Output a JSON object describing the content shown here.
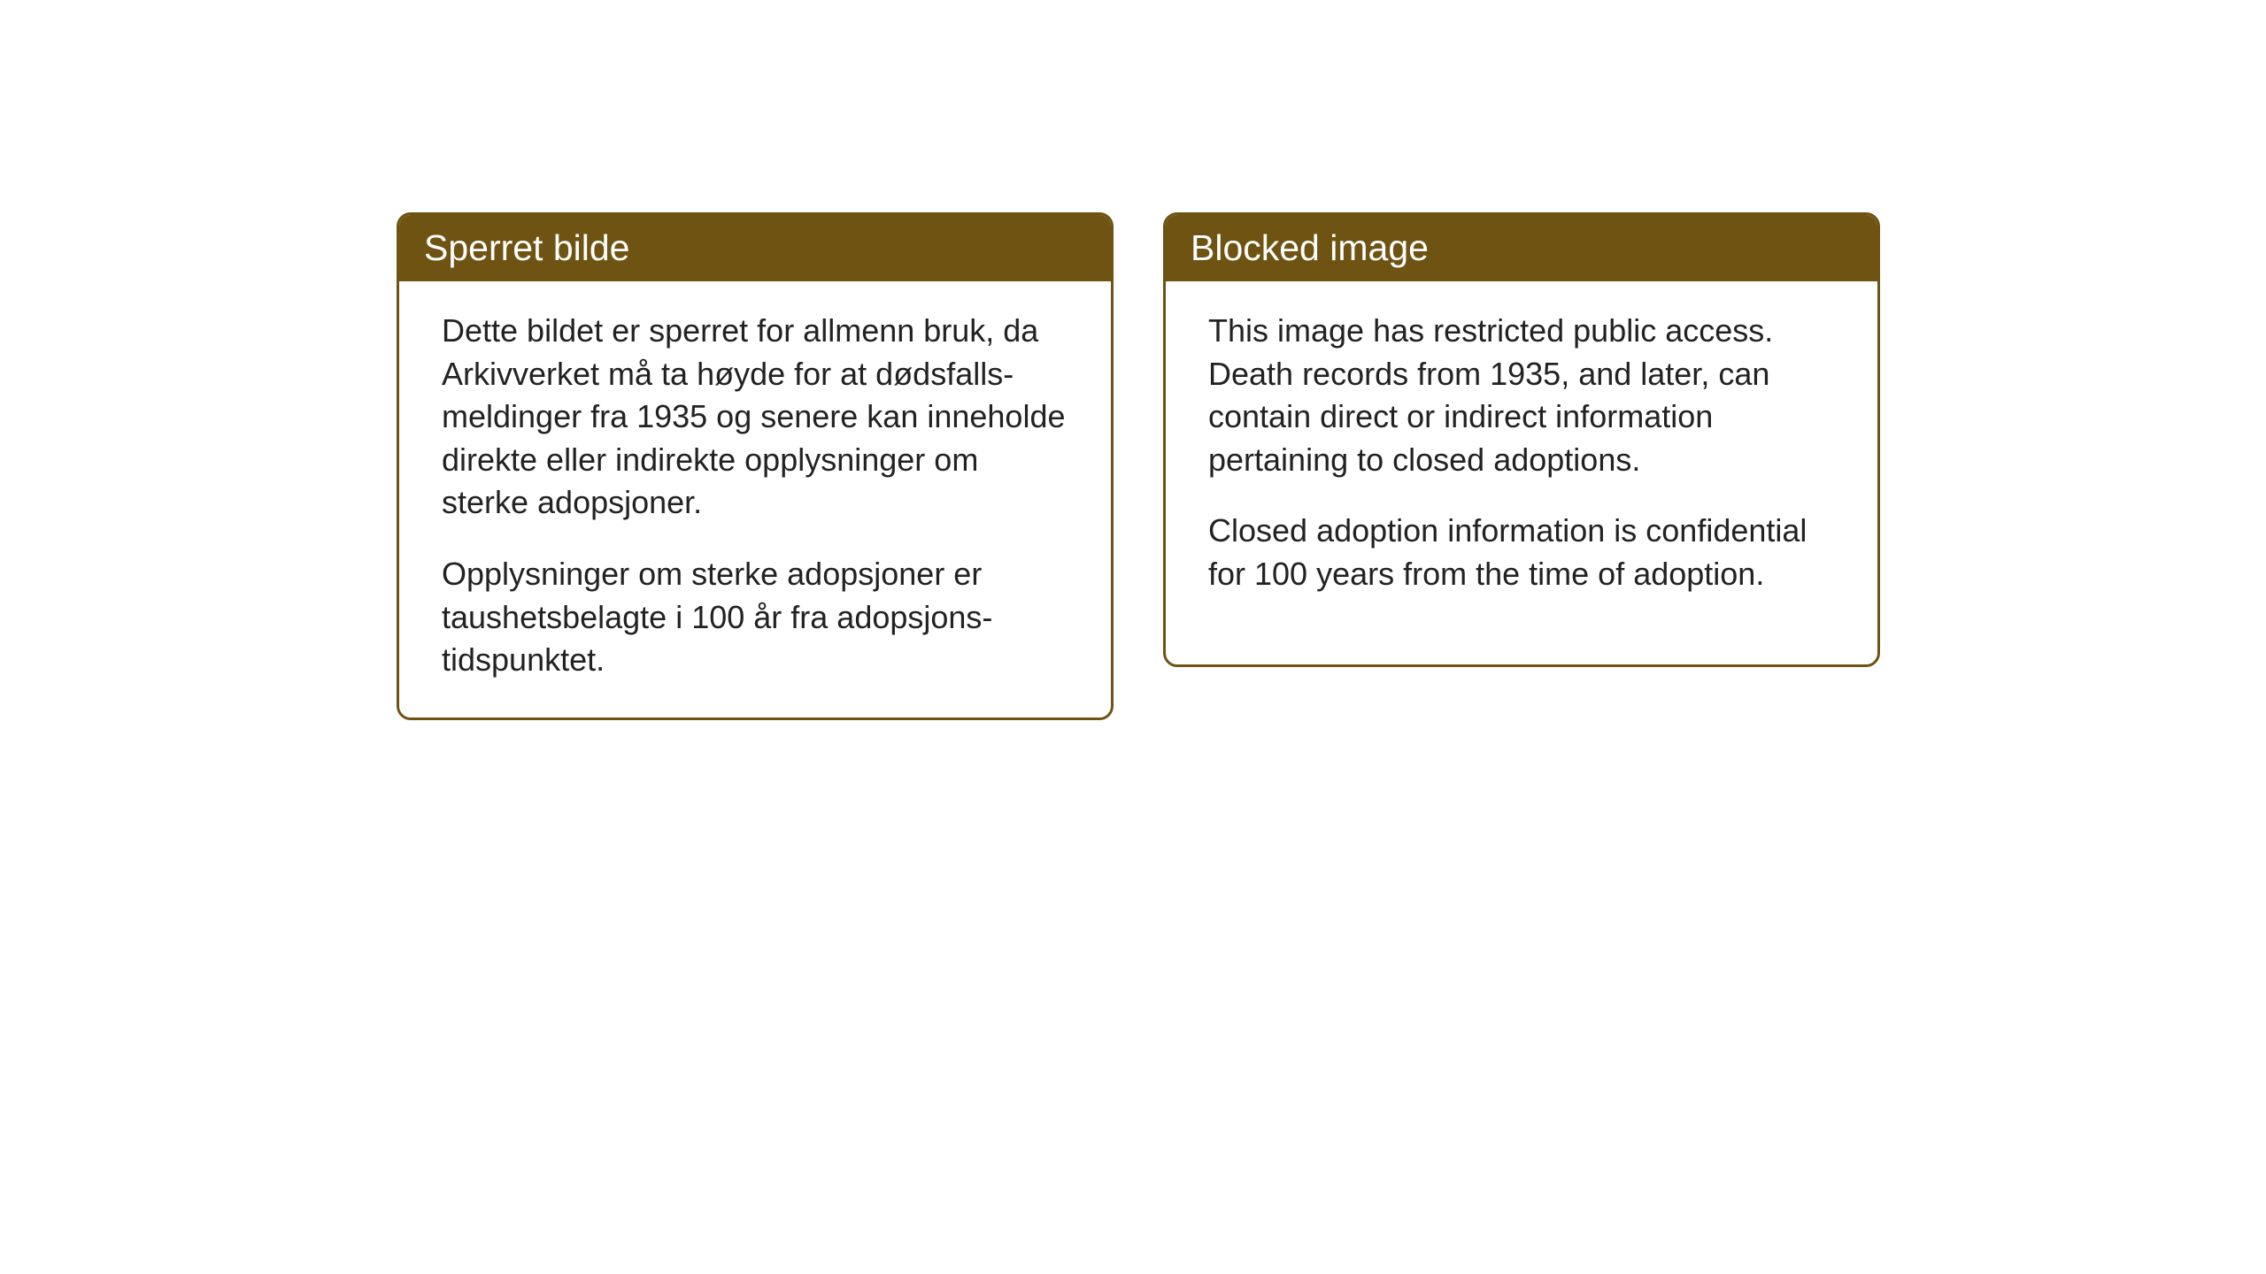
{
  "background_color": "#ffffff",
  "card_border_color": "#6f5312",
  "card_header_bg": "#6f5312",
  "card_header_text_color": "#ffffff",
  "body_text_color": "#222222",
  "header_fontsize": 41,
  "body_fontsize": 36,
  "cards": {
    "left": {
      "title": "Sperret bilde",
      "para1": "Dette bildet er sperret for allmenn bruk, da Arkivverket må ta høyde for at dødsfalls-meldinger fra 1935 og senere kan inneholde direkte eller indirekte opplysninger om sterke adopsjoner.",
      "para2": "Opplysninger om sterke adopsjoner er taushetsbelagte i 100 år fra adopsjons-tidspunktet."
    },
    "right": {
      "title": "Blocked image",
      "para1": "This image has restricted public access. Death records from 1935, and later, can contain direct or indirect information pertaining to closed adoptions.",
      "para2": "Closed adoption information is confidential for 100 years from the time of adoption."
    }
  }
}
